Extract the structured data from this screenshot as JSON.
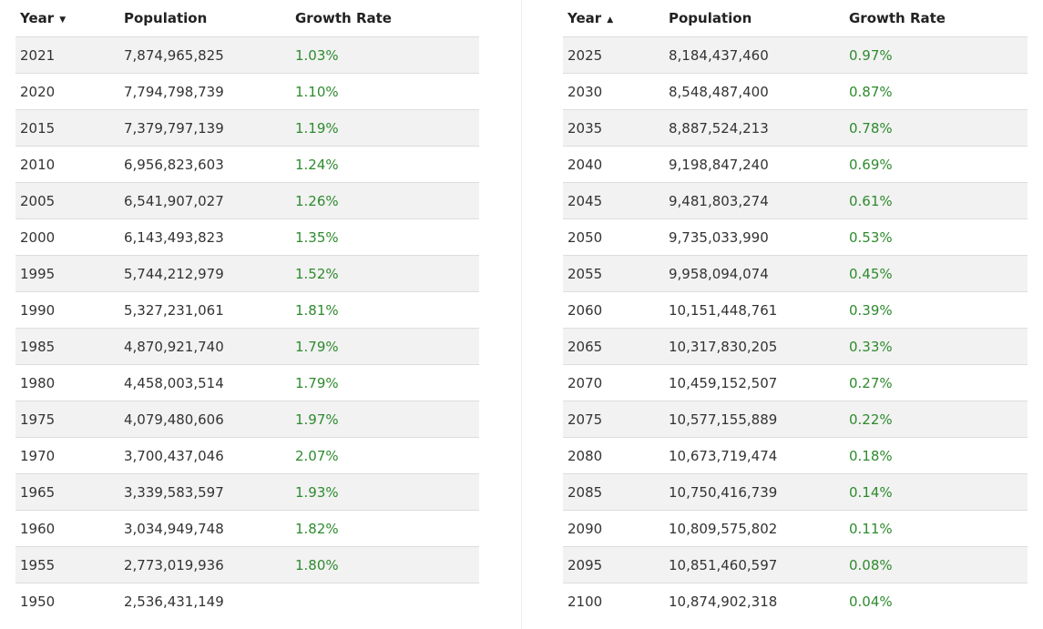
{
  "tables": [
    {
      "headers": {
        "year": "Year",
        "population": "Population",
        "growth": "Growth Rate"
      },
      "sort_icon": "sort-descending-icon",
      "sort_glyph": "▼",
      "rows": [
        {
          "year": "2021",
          "population": "7,874,965,825",
          "growth": "1.03%"
        },
        {
          "year": "2020",
          "population": "7,794,798,739",
          "growth": "1.10%"
        },
        {
          "year": "2015",
          "population": "7,379,797,139",
          "growth": "1.19%"
        },
        {
          "year": "2010",
          "population": "6,956,823,603",
          "growth": "1.24%"
        },
        {
          "year": "2005",
          "population": "6,541,907,027",
          "growth": "1.26%"
        },
        {
          "year": "2000",
          "population": "6,143,493,823",
          "growth": "1.35%"
        },
        {
          "year": "1995",
          "population": "5,744,212,979",
          "growth": "1.52%"
        },
        {
          "year": "1990",
          "population": "5,327,231,061",
          "growth": "1.81%"
        },
        {
          "year": "1985",
          "population": "4,870,921,740",
          "growth": "1.79%"
        },
        {
          "year": "1980",
          "population": "4,458,003,514",
          "growth": "1.79%"
        },
        {
          "year": "1975",
          "population": "4,079,480,606",
          "growth": "1.97%"
        },
        {
          "year": "1970",
          "population": "3,700,437,046",
          "growth": "2.07%"
        },
        {
          "year": "1965",
          "population": "3,339,583,597",
          "growth": "1.93%"
        },
        {
          "year": "1960",
          "population": "3,034,949,748",
          "growth": "1.82%"
        },
        {
          "year": "1955",
          "population": "2,773,019,936",
          "growth": "1.80%"
        },
        {
          "year": "1950",
          "population": "2,536,431,149",
          "growth": ""
        }
      ]
    },
    {
      "headers": {
        "year": "Year",
        "population": "Population",
        "growth": "Growth Rate"
      },
      "sort_icon": "sort-ascending-icon",
      "sort_glyph": "▲",
      "rows": [
        {
          "year": "2025",
          "population": "8,184,437,460",
          "growth": "0.97%"
        },
        {
          "year": "2030",
          "population": "8,548,487,400",
          "growth": "0.87%"
        },
        {
          "year": "2035",
          "population": "8,887,524,213",
          "growth": "0.78%"
        },
        {
          "year": "2040",
          "population": "9,198,847,240",
          "growth": "0.69%"
        },
        {
          "year": "2045",
          "population": "9,481,803,274",
          "growth": "0.61%"
        },
        {
          "year": "2050",
          "population": "9,735,033,990",
          "growth": "0.53%"
        },
        {
          "year": "2055",
          "population": "9,958,094,074",
          "growth": "0.45%"
        },
        {
          "year": "2060",
          "population": "10,151,448,761",
          "growth": "0.39%"
        },
        {
          "year": "2065",
          "population": "10,317,830,205",
          "growth": "0.33%"
        },
        {
          "year": "2070",
          "population": "10,459,152,507",
          "growth": "0.27%"
        },
        {
          "year": "2075",
          "population": "10,577,155,889",
          "growth": "0.22%"
        },
        {
          "year": "2080",
          "population": "10,673,719,474",
          "growth": "0.18%"
        },
        {
          "year": "2085",
          "population": "10,750,416,739",
          "growth": "0.14%"
        },
        {
          "year": "2090",
          "population": "10,809,575,802",
          "growth": "0.11%"
        },
        {
          "year": "2095",
          "population": "10,851,460,597",
          "growth": "0.08%"
        },
        {
          "year": "2100",
          "population": "10,874,902,318",
          "growth": "0.04%"
        }
      ]
    }
  ],
  "colors": {
    "growth_text": "#2e8b2e",
    "stripe": "#f2f2f2",
    "row_border": "#dddddd"
  }
}
